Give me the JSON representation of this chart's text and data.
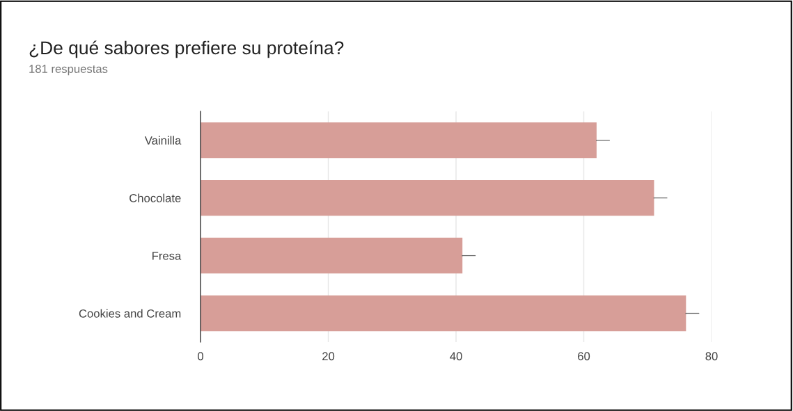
{
  "chart_data": {
    "type": "bar",
    "orientation": "horizontal",
    "title": "¿De qué sabores prefiere su proteína?",
    "subtitle": "181 respuestas",
    "categories": [
      "Vainilla",
      "Chocolate",
      "Fresa",
      "Cookies and Cream"
    ],
    "values": [
      62,
      71,
      41,
      76
    ],
    "errors": [
      [
        62,
        64
      ],
      [
        71,
        73
      ],
      [
        41,
        43
      ],
      [
        76,
        78
      ]
    ],
    "color": "#d79e98",
    "xlim": [
      0,
      80
    ],
    "xticks": [
      0,
      20,
      40,
      60,
      80
    ],
    "grid": "x"
  }
}
